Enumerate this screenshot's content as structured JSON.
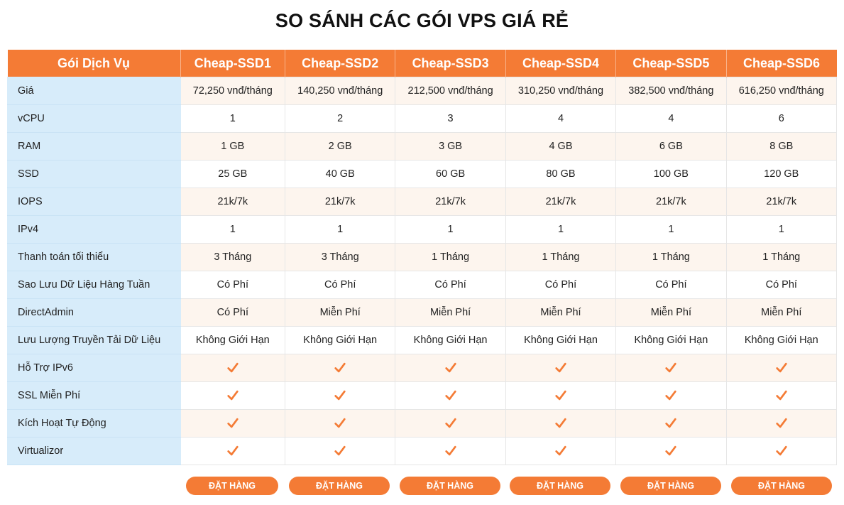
{
  "title": "SO SÁNH CÁC GÓI VPS GIÁ RẺ",
  "header": {
    "label": "Gói Dịch Vụ",
    "plans": [
      "Cheap-SSD1",
      "Cheap-SSD2",
      "Cheap-SSD3",
      "Cheap-SSD4",
      "Cheap-SSD5",
      "Cheap-SSD6"
    ]
  },
  "rows": [
    {
      "label": "Giá",
      "values": [
        "72,250 vnđ/tháng",
        "140,250 vnđ/tháng",
        "212,500 vnđ/tháng",
        "310,250 vnđ/tháng",
        "382,500 vnđ/tháng",
        "616,250 vnđ/tháng"
      ]
    },
    {
      "label": "vCPU",
      "values": [
        "1",
        "2",
        "3",
        "4",
        "4",
        "6"
      ]
    },
    {
      "label": "RAM",
      "values": [
        "1 GB",
        "2 GB",
        "3 GB",
        "4 GB",
        "6 GB",
        "8 GB"
      ]
    },
    {
      "label": "SSD",
      "values": [
        "25 GB",
        "40 GB",
        "60 GB",
        "80 GB",
        "100 GB",
        "120 GB"
      ]
    },
    {
      "label": "IOPS",
      "values": [
        "21k/7k",
        "21k/7k",
        "21k/7k",
        "21k/7k",
        "21k/7k",
        "21k/7k"
      ]
    },
    {
      "label": "IPv4",
      "values": [
        "1",
        "1",
        "1",
        "1",
        "1",
        "1"
      ]
    },
    {
      "label": "Thanh toán tối thiểu",
      "values": [
        "3 Tháng",
        "3 Tháng",
        "1 Tháng",
        "1 Tháng",
        "1 Tháng",
        "1 Tháng"
      ]
    },
    {
      "label": "Sao Lưu Dữ Liệu Hàng Tuần",
      "values": [
        "Có Phí",
        "Có Phí",
        "Có Phí",
        "Có Phí",
        "Có Phí",
        "Có Phí"
      ]
    },
    {
      "label": "DirectAdmin",
      "values": [
        "Có Phí",
        "Miễn Phí",
        "Miễn Phí",
        "Miễn Phí",
        "Miễn Phí",
        "Miễn Phí"
      ]
    },
    {
      "label": "Lưu Lượng Truyền Tải Dữ Liệu",
      "values": [
        "Không Giới Hạn",
        "Không Giới Hạn",
        "Không Giới Hạn",
        "Không Giới Hạn",
        "Không Giới Hạn",
        "Không Giới Hạn"
      ]
    }
  ],
  "check_rows": [
    {
      "label": "Hỗ Trợ IPv6",
      "icon": "checkmark-icon"
    },
    {
      "label": "SSL Miễn Phí",
      "icon": "checkmark-icon"
    },
    {
      "label": "Kích Hoạt Tự Động",
      "icon": "checkmark-icon"
    },
    {
      "label": "Virtualizor",
      "icon": "checkmark-icon"
    }
  ],
  "order_label": "ĐẶT HÀNG",
  "colors": {
    "accent": "#f47b35",
    "label_bg": "#d7ecfa",
    "alt_row_bg": "#fdf5ee"
  }
}
